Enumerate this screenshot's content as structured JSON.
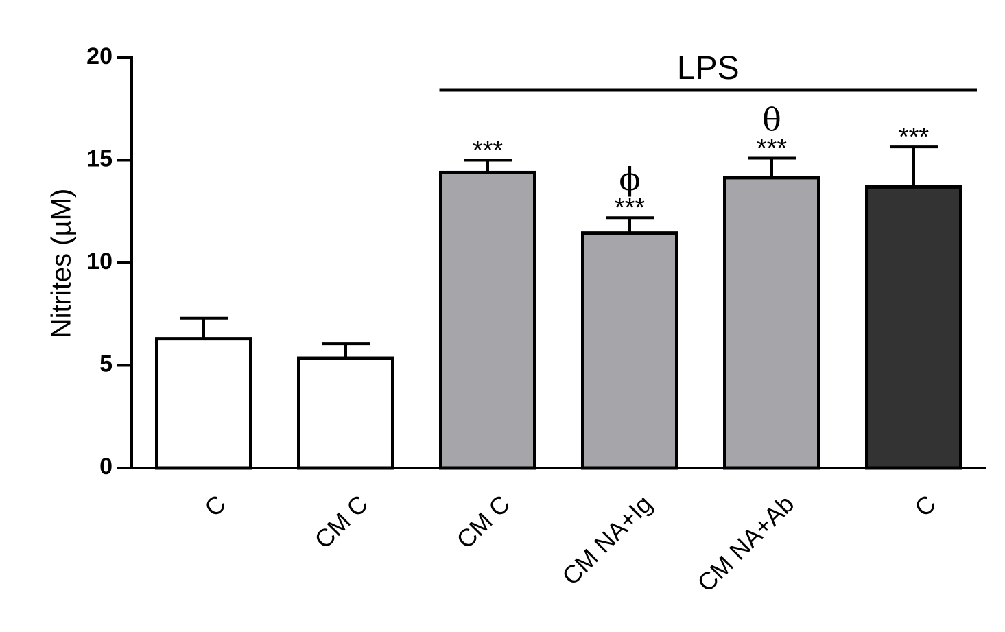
{
  "chart_data": {
    "type": "bar",
    "title": "",
    "xlabel": "",
    "ylabel": "Nitrites (µM)",
    "ylim": [
      0,
      20
    ],
    "yticks": [
      "0",
      "5",
      "10",
      "15",
      "20"
    ],
    "categories": [
      "C",
      "CM C",
      "CM C",
      "CM NA+Ig",
      "CM NA+Ab",
      "C"
    ],
    "values": [
      6.3,
      5.35,
      14.4,
      11.45,
      14.15,
      13.7
    ],
    "errors": [
      1.0,
      0.7,
      0.6,
      0.75,
      0.95,
      1.95
    ],
    "bar_colors": [
      "#ffffff",
      "#ffffff",
      "#a6a6aa",
      "#a6a6aa",
      "#a6a6aa",
      "#333333"
    ],
    "significance": [
      "",
      "",
      "***",
      "***",
      "***",
      "***"
    ],
    "extra_symbols": [
      "",
      "",
      "",
      "ϕ",
      "θ",
      ""
    ],
    "group_label": {
      "text": "LPS",
      "from_index": 2,
      "to_index": 5
    },
    "grid": false,
    "legend": "none"
  }
}
